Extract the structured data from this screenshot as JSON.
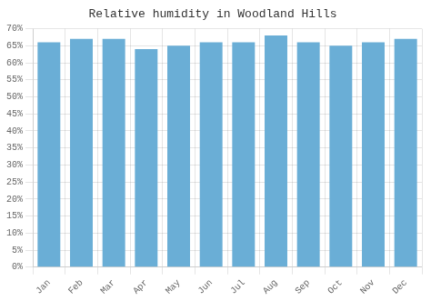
{
  "chart_data": {
    "type": "bar",
    "title": "Relative humidity in Woodland Hills",
    "categories": [
      "Jan",
      "Feb",
      "Mar",
      "Apr",
      "May",
      "Jun",
      "Jul",
      "Aug",
      "Sep",
      "Oct",
      "Nov",
      "Dec"
    ],
    "values": [
      66,
      67,
      67,
      64,
      65,
      66,
      66,
      68,
      66,
      65,
      66,
      67
    ],
    "color": "#6aaed6",
    "ylim": [
      0,
      70
    ],
    "yticks": [
      {
        "value": 0,
        "label": "0%"
      },
      {
        "value": 5,
        "label": "5%"
      },
      {
        "value": 10,
        "label": "10%"
      },
      {
        "value": 15,
        "label": "15%"
      },
      {
        "value": 20,
        "label": "20%"
      },
      {
        "value": 25,
        "label": "25%"
      },
      {
        "value": 30,
        "label": "30%"
      },
      {
        "value": 35,
        "label": "35%"
      },
      {
        "value": 40,
        "label": "40%"
      },
      {
        "value": 45,
        "label": "45%"
      },
      {
        "value": 50,
        "label": "50%"
      },
      {
        "value": 55,
        "label": "55%"
      },
      {
        "value": 60,
        "label": "60%"
      },
      {
        "value": 65,
        "label": "65%"
      },
      {
        "value": 70,
        "label": "70%"
      }
    ],
    "grid": true
  }
}
